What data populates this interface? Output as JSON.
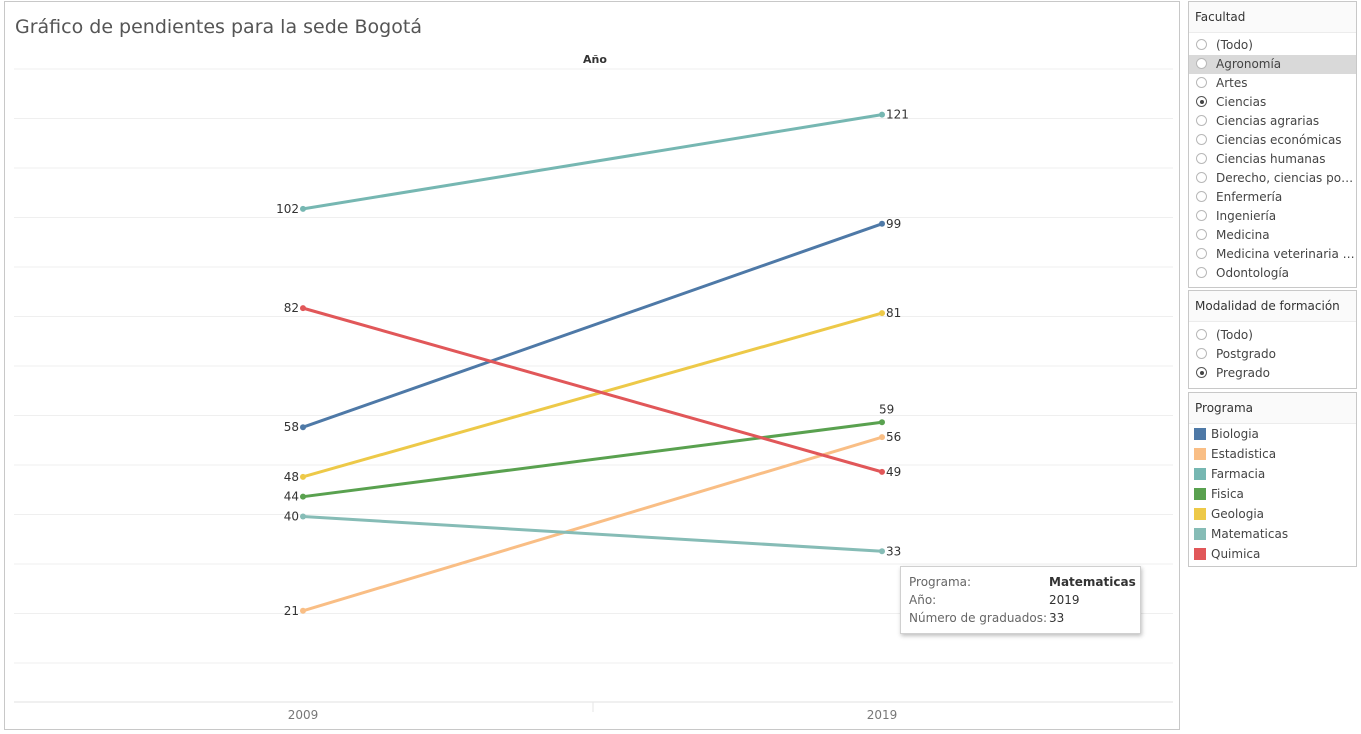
{
  "title": "Gráfico de pendientes para la sede Bogotá",
  "axis_header": "Año",
  "chart_data": {
    "type": "line",
    "title": "Gráfico de pendientes para la sede Bogotá",
    "xlabel": "Año",
    "ylabel": "",
    "x": [
      "2009",
      "2019"
    ],
    "ylim": [
      0,
      131
    ],
    "grid": true,
    "legend": "right",
    "series": [
      {
        "name": "Biologia",
        "color": "#4e79a7",
        "values": [
          58,
          99
        ]
      },
      {
        "name": "Estadistica",
        "color": "#f9be85",
        "values": [
          21,
          56
        ]
      },
      {
        "name": "Farmacia",
        "color": "#76b7b2",
        "values": [
          102,
          121
        ]
      },
      {
        "name": "Fisica",
        "color": "#59a14f",
        "values": [
          44,
          59
        ]
      },
      {
        "name": "Geologia",
        "color": "#edc948",
        "values": [
          48,
          81
        ]
      },
      {
        "name": "Matematicas",
        "color": "#86bcb6",
        "values": [
          40,
          33
        ]
      },
      {
        "name": "Quimica",
        "color": "#e15759",
        "values": [
          82,
          49
        ]
      }
    ]
  },
  "tooltip": {
    "rows": [
      {
        "key": "Programa:",
        "value": "Matematicas"
      },
      {
        "key": "Año:",
        "value": "2019"
      },
      {
        "key": "Número de graduados:",
        "value": "33"
      }
    ]
  },
  "filters": {
    "facultad": {
      "title": "Facultad",
      "options": [
        "(Todo)",
        "Agronomía",
        "Artes",
        "Ciencias",
        "Ciencias agrarias",
        "Ciencias económicas",
        "Ciencias humanas",
        "Derecho, ciencias polít…",
        "Enfermería",
        "Ingeniería",
        "Medicina",
        "Medicina veterinaria y…",
        "Odontología"
      ],
      "selected": "Ciencias",
      "hovered": "Agronomía"
    },
    "modalidad": {
      "title": "Modalidad de formación",
      "options": [
        "(Todo)",
        "Postgrado",
        "Pregrado"
      ],
      "selected": "Pregrado"
    },
    "programa": {
      "title": "Programa"
    }
  }
}
